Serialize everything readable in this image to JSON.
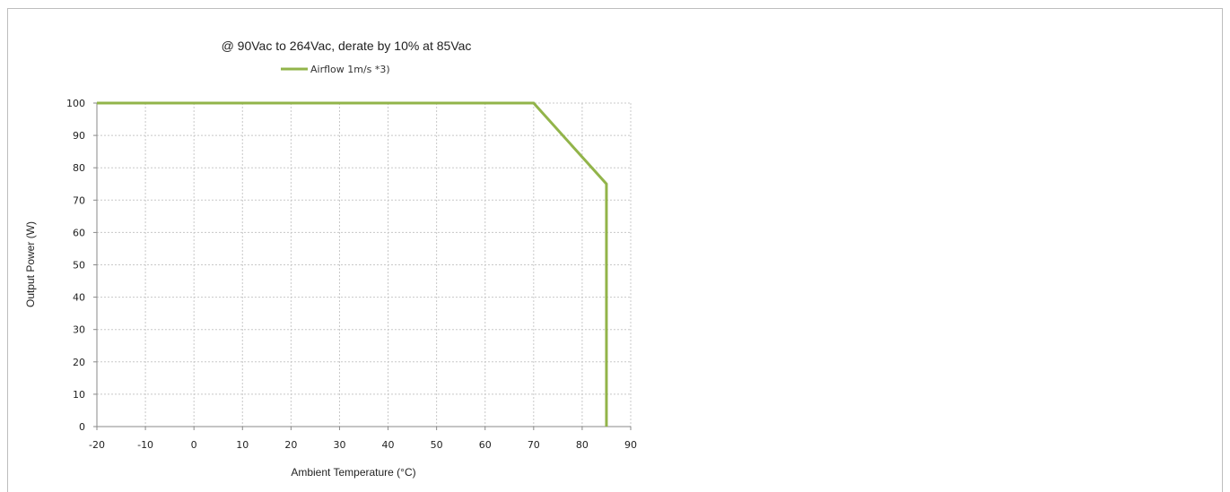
{
  "chart_data": {
    "type": "line",
    "title": "@ 90Vac to 264Vac, derate by 10% at 85Vac",
    "xlabel": "Ambient Temperature  (°C)",
    "ylabel": "Output Power  (W)",
    "xlim": [
      -20,
      90
    ],
    "ylim": [
      0,
      100
    ],
    "x_ticks": [
      -20,
      -10,
      0,
      10,
      20,
      30,
      40,
      50,
      60,
      70,
      80,
      90
    ],
    "y_ticks": [
      0,
      10,
      20,
      30,
      40,
      50,
      60,
      70,
      80,
      90,
      100
    ],
    "grid": "dashed",
    "legend_position": "top-center",
    "series": [
      {
        "name": "Airflow 1m/s *3)",
        "color": "#92b44a",
        "x": [
          -20,
          70,
          85,
          85
        ],
        "y": [
          100,
          100,
          75,
          0
        ]
      }
    ]
  }
}
